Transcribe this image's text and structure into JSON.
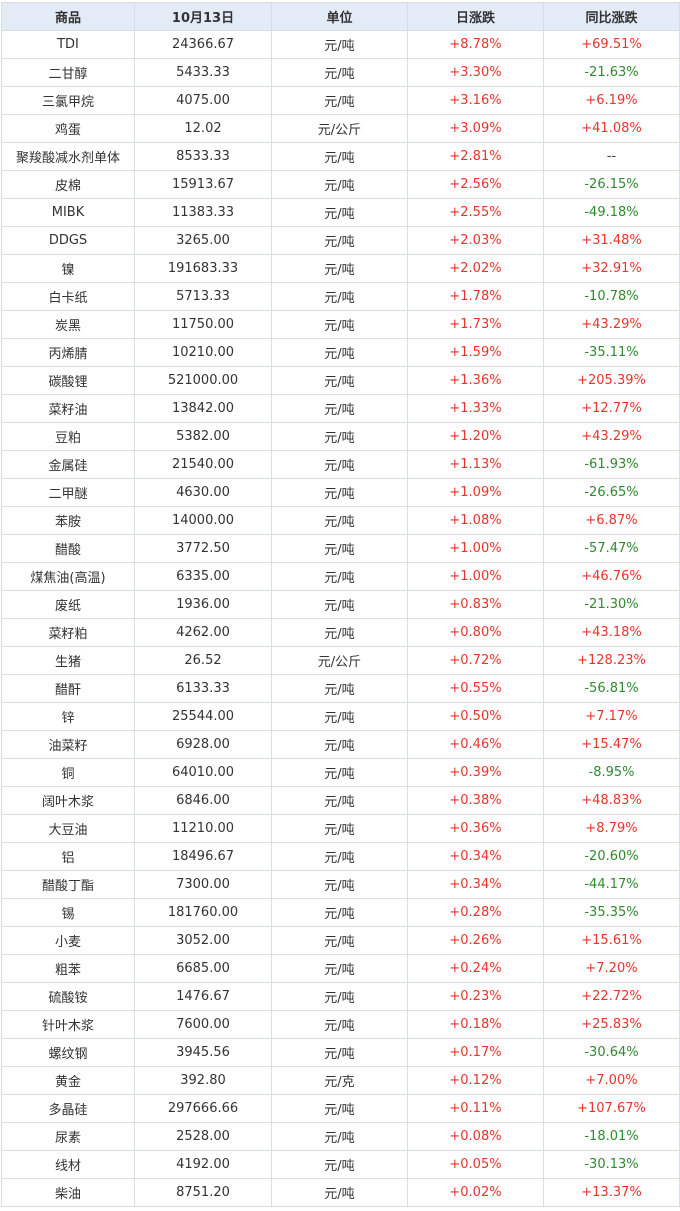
{
  "columns": [
    "商品",
    "10月13日",
    "单位",
    "日涨跌",
    "同比涨跌"
  ],
  "rows": [
    {
      "name": "TDI",
      "price": "24366.67",
      "unit": "元/吨",
      "daily": "+8.78%",
      "yoy": "+69.51%"
    },
    {
      "name": "二甘醇",
      "price": "5433.33",
      "unit": "元/吨",
      "daily": "+3.30%",
      "yoy": "-21.63%"
    },
    {
      "name": "三氯甲烷",
      "price": "4075.00",
      "unit": "元/吨",
      "daily": "+3.16%",
      "yoy": "+6.19%"
    },
    {
      "name": "鸡蛋",
      "price": "12.02",
      "unit": "元/公斤",
      "daily": "+3.09%",
      "yoy": "+41.08%"
    },
    {
      "name": "聚羧酸减水剂单体",
      "price": "8533.33",
      "unit": "元/吨",
      "daily": "+2.81%",
      "yoy": "--"
    },
    {
      "name": "皮棉",
      "price": "15913.67",
      "unit": "元/吨",
      "daily": "+2.56%",
      "yoy": "-26.15%"
    },
    {
      "name": "MIBK",
      "price": "11383.33",
      "unit": "元/吨",
      "daily": "+2.55%",
      "yoy": "-49.18%"
    },
    {
      "name": "DDGS",
      "price": "3265.00",
      "unit": "元/吨",
      "daily": "+2.03%",
      "yoy": "+31.48%"
    },
    {
      "name": "镍",
      "price": "191683.33",
      "unit": "元/吨",
      "daily": "+2.02%",
      "yoy": "+32.91%"
    },
    {
      "name": "白卡纸",
      "price": "5713.33",
      "unit": "元/吨",
      "daily": "+1.78%",
      "yoy": "-10.78%"
    },
    {
      "name": "炭黑",
      "price": "11750.00",
      "unit": "元/吨",
      "daily": "+1.73%",
      "yoy": "+43.29%"
    },
    {
      "name": "丙烯腈",
      "price": "10210.00",
      "unit": "元/吨",
      "daily": "+1.59%",
      "yoy": "-35.11%"
    },
    {
      "name": "碳酸锂",
      "price": "521000.00",
      "unit": "元/吨",
      "daily": "+1.36%",
      "yoy": "+205.39%"
    },
    {
      "name": "菜籽油",
      "price": "13842.00",
      "unit": "元/吨",
      "daily": "+1.33%",
      "yoy": "+12.77%"
    },
    {
      "name": "豆粕",
      "price": "5382.00",
      "unit": "元/吨",
      "daily": "+1.20%",
      "yoy": "+43.29%"
    },
    {
      "name": "金属硅",
      "price": "21540.00",
      "unit": "元/吨",
      "daily": "+1.13%",
      "yoy": "-61.93%"
    },
    {
      "name": "二甲醚",
      "price": "4630.00",
      "unit": "元/吨",
      "daily": "+1.09%",
      "yoy": "-26.65%"
    },
    {
      "name": "苯胺",
      "price": "14000.00",
      "unit": "元/吨",
      "daily": "+1.08%",
      "yoy": "+6.87%"
    },
    {
      "name": "醋酸",
      "price": "3772.50",
      "unit": "元/吨",
      "daily": "+1.00%",
      "yoy": "-57.47%"
    },
    {
      "name": "煤焦油(高温)",
      "price": "6335.00",
      "unit": "元/吨",
      "daily": "+1.00%",
      "yoy": "+46.76%"
    },
    {
      "name": "废纸",
      "price": "1936.00",
      "unit": "元/吨",
      "daily": "+0.83%",
      "yoy": "-21.30%"
    },
    {
      "name": "菜籽粕",
      "price": "4262.00",
      "unit": "元/吨",
      "daily": "+0.80%",
      "yoy": "+43.18%"
    },
    {
      "name": "生猪",
      "price": "26.52",
      "unit": "元/公斤",
      "daily": "+0.72%",
      "yoy": "+128.23%"
    },
    {
      "name": "醋酐",
      "price": "6133.33",
      "unit": "元/吨",
      "daily": "+0.55%",
      "yoy": "-56.81%"
    },
    {
      "name": "锌",
      "price": "25544.00",
      "unit": "元/吨",
      "daily": "+0.50%",
      "yoy": "+7.17%"
    },
    {
      "name": "油菜籽",
      "price": "6928.00",
      "unit": "元/吨",
      "daily": "+0.46%",
      "yoy": "+15.47%"
    },
    {
      "name": "铜",
      "price": "64010.00",
      "unit": "元/吨",
      "daily": "+0.39%",
      "yoy": "-8.95%"
    },
    {
      "name": "阔叶木浆",
      "price": "6846.00",
      "unit": "元/吨",
      "daily": "+0.38%",
      "yoy": "+48.83%"
    },
    {
      "name": "大豆油",
      "price": "11210.00",
      "unit": "元/吨",
      "daily": "+0.36%",
      "yoy": "+8.79%"
    },
    {
      "name": "铝",
      "price": "18496.67",
      "unit": "元/吨",
      "daily": "+0.34%",
      "yoy": "-20.60%"
    },
    {
      "name": "醋酸丁酯",
      "price": "7300.00",
      "unit": "元/吨",
      "daily": "+0.34%",
      "yoy": "-44.17%"
    },
    {
      "name": "锡",
      "price": "181760.00",
      "unit": "元/吨",
      "daily": "+0.28%",
      "yoy": "-35.35%"
    },
    {
      "name": "小麦",
      "price": "3052.00",
      "unit": "元/吨",
      "daily": "+0.26%",
      "yoy": "+15.61%"
    },
    {
      "name": "粗苯",
      "price": "6685.00",
      "unit": "元/吨",
      "daily": "+0.24%",
      "yoy": "+7.20%"
    },
    {
      "name": "硫酸铵",
      "price": "1476.67",
      "unit": "元/吨",
      "daily": "+0.23%",
      "yoy": "+22.72%"
    },
    {
      "name": "针叶木浆",
      "price": "7600.00",
      "unit": "元/吨",
      "daily": "+0.18%",
      "yoy": "+25.83%"
    },
    {
      "name": "螺纹钢",
      "price": "3945.56",
      "unit": "元/吨",
      "daily": "+0.17%",
      "yoy": "-30.64%"
    },
    {
      "name": "黄金",
      "price": "392.80",
      "unit": "元/克",
      "daily": "+0.12%",
      "yoy": "+7.00%"
    },
    {
      "name": "多晶硅",
      "price": "297666.66",
      "unit": "元/吨",
      "daily": "+0.11%",
      "yoy": "+107.67%"
    },
    {
      "name": "尿素",
      "price": "2528.00",
      "unit": "元/吨",
      "daily": "+0.08%",
      "yoy": "-18.01%"
    },
    {
      "name": "线材",
      "price": "4192.00",
      "unit": "元/吨",
      "daily": "+0.05%",
      "yoy": "-30.13%"
    },
    {
      "name": "柴油",
      "price": "8751.20",
      "unit": "元/吨",
      "daily": "+0.02%",
      "yoy": "+13.37%"
    }
  ],
  "colors": {
    "header_bg": "#e2ebf6",
    "border": "#d6dde6",
    "positive": "#e6352b",
    "negative": "#2e8b2e"
  }
}
